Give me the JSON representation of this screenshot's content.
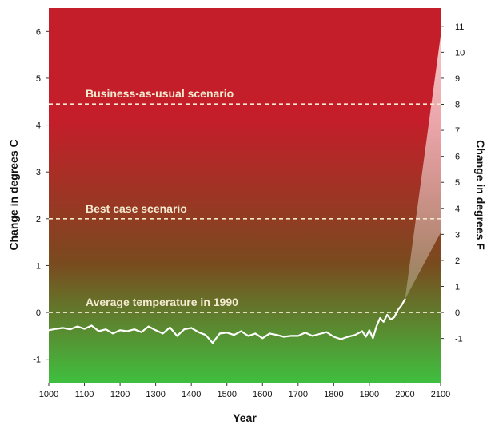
{
  "chart_data": {
    "type": "line",
    "xlabel": "Year",
    "ylabel": "Change in degrees C",
    "ylabel_right": "Change in degrees F",
    "xlim": [
      1000,
      2100
    ],
    "ylim": [
      -1.5,
      6.5
    ],
    "ylim_right_F": [
      -2.7,
      11.7
    ],
    "x_ticks": [
      "1000",
      "1100",
      "1200",
      "1300",
      "1400",
      "1500",
      "1600",
      "1700",
      "1800",
      "1900",
      "2000",
      "2100"
    ],
    "y_ticks_left": [
      "-1",
      "0",
      "1",
      "2",
      "3",
      "4",
      "5",
      "6"
    ],
    "y_ticks_right": [
      "-1",
      "0",
      "1",
      "2",
      "3",
      "4",
      "5",
      "6",
      "7",
      "8",
      "9",
      "10",
      "11"
    ],
    "reference_lines": [
      {
        "label": "Business-as-usual scenario",
        "y": 4.45
      },
      {
        "label": "Best case scenario",
        "y": 2.0
      },
      {
        "label": "Average temperature in 1990",
        "y": 0.0
      }
    ],
    "series": [
      {
        "x": [
          1000,
          1020,
          1040,
          1060,
          1080,
          1100,
          1120,
          1140,
          1160,
          1180,
          1200,
          1220,
          1240,
          1260,
          1280,
          1300,
          1320,
          1340,
          1360,
          1380,
          1400,
          1420,
          1440,
          1460,
          1480,
          1500,
          1520,
          1540,
          1560,
          1580,
          1600,
          1620,
          1640,
          1660,
          1680,
          1700,
          1720,
          1740,
          1760,
          1780,
          1800,
          1820,
          1840,
          1860,
          1880,
          1890,
          1900,
          1910,
          1920,
          1930,
          1940,
          1950,
          1960,
          1970,
          1980,
          1990,
          2000
        ],
        "y": [
          -0.38,
          -0.35,
          -0.33,
          -0.36,
          -0.3,
          -0.35,
          -0.28,
          -0.4,
          -0.36,
          -0.45,
          -0.38,
          -0.4,
          -0.36,
          -0.42,
          -0.3,
          -0.38,
          -0.45,
          -0.32,
          -0.5,
          -0.36,
          -0.33,
          -0.42,
          -0.48,
          -0.65,
          -0.45,
          -0.43,
          -0.48,
          -0.4,
          -0.5,
          -0.45,
          -0.55,
          -0.45,
          -0.48,
          -0.52,
          -0.5,
          -0.5,
          -0.43,
          -0.5,
          -0.46,
          -0.42,
          -0.52,
          -0.57,
          -0.52,
          -0.48,
          -0.4,
          -0.52,
          -0.38,
          -0.55,
          -0.3,
          -0.12,
          -0.2,
          -0.05,
          -0.15,
          -0.1,
          0.05,
          0.15,
          0.28
        ]
      }
    ],
    "projection_range": {
      "x": [
        2000,
        2100
      ],
      "y_start": 0.28,
      "y_low_end": 1.7,
      "y_high_end": 5.9
    },
    "colors": {
      "top": "#c41e2a",
      "mid": "#7a4a1f",
      "bottom": "#3fbf3f",
      "line": "#ffffff",
      "reference_line": "#f3ead0",
      "projection": "#e8c8c8"
    }
  }
}
